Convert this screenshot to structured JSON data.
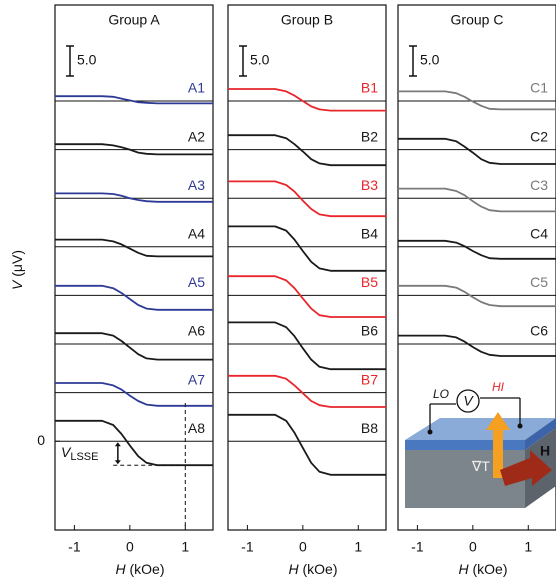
{
  "chart_data": [
    {
      "type": "line",
      "title": "Group A",
      "x": [
        -1.35,
        -1,
        -0.5,
        -0.3,
        -0.15,
        0,
        0.15,
        0.3,
        0.5,
        1,
        1.5
      ],
      "xlim": [
        -1.35,
        1.5
      ],
      "xticks": [
        -1,
        0,
        1
      ],
      "ylim": [
        -14.8,
        72.7
      ],
      "yticks": [
        0
      ],
      "xlabel_symbol": "H",
      "xlabel_unit": "(kOe)",
      "ylabel_symbol": "V",
      "ylabel_unit": "(μV)",
      "scale_bar": {
        "value": 5,
        "label": "5.0"
      },
      "annotation": {
        "symbol": "V",
        "subscript": "LSSE"
      },
      "series": [
        {
          "name": "A1",
          "color": "#2e3b96",
          "values": [
            57.5,
            57.5,
            57.5,
            57.4,
            57.1,
            56.8,
            56.5,
            56.4,
            56.3,
            56.3,
            56.3
          ]
        },
        {
          "name": "A2",
          "color": "#1a1a1a",
          "values": [
            49.5,
            49.5,
            49.5,
            49.3,
            49.0,
            48.6,
            48.1,
            47.9,
            47.8,
            47.8,
            47.8
          ]
        },
        {
          "name": "A3",
          "color": "#2e3b96",
          "values": [
            41.3,
            41.3,
            41.3,
            41.2,
            40.9,
            40.5,
            40.2,
            40.0,
            39.9,
            39.9,
            39.9
          ]
        },
        {
          "name": "A4",
          "color": "#1a1a1a",
          "values": [
            33.6,
            33.6,
            33.6,
            33.3,
            32.8,
            32.1,
            31.4,
            30.9,
            30.8,
            30.8,
            30.8
          ]
        },
        {
          "name": "A5",
          "color": "#2e3b96",
          "values": [
            25.9,
            25.9,
            25.9,
            25.5,
            24.7,
            23.7,
            22.7,
            22.1,
            21.9,
            21.9,
            21.9
          ]
        },
        {
          "name": "A6",
          "color": "#1a1a1a",
          "values": [
            18.0,
            18.0,
            18.0,
            17.6,
            16.7,
            15.6,
            14.5,
            13.8,
            13.6,
            13.6,
            13.6
          ]
        },
        {
          "name": "A7",
          "color": "#2e3b96",
          "values": [
            9.7,
            9.7,
            9.7,
            9.3,
            8.6,
            7.6,
            6.7,
            6.1,
            5.9,
            5.9,
            5.9
          ]
        },
        {
          "name": "A8",
          "color": "#1a1a1a",
          "values": [
            3.4,
            3.4,
            3.4,
            2.7,
            1.2,
            -0.7,
            -2.5,
            -3.6,
            -4.0,
            -4.0,
            -4.0
          ]
        }
      ]
    },
    {
      "type": "line",
      "title": "Group B",
      "x": [
        -1.35,
        -1,
        -0.5,
        -0.3,
        -0.15,
        0,
        0.15,
        0.3,
        0.5,
        1,
        1.5
      ],
      "xlim": [
        -1.35,
        1.5
      ],
      "xticks": [
        -1,
        0,
        1
      ],
      "ylim": [
        -14.8,
        72.7
      ],
      "xlabel_symbol": "H",
      "xlabel_unit": "(kOe)",
      "scale_bar": {
        "value": 5,
        "label": "5.0"
      },
      "series": [
        {
          "name": "B1",
          "color": "#e8262b",
          "values": [
            58.7,
            58.7,
            58.7,
            58.3,
            57.6,
            56.7,
            55.8,
            55.3,
            55.1,
            55.1,
            55.1
          ]
        },
        {
          "name": "B2",
          "color": "#1a1a1a",
          "values": [
            51.0,
            51.0,
            51.0,
            50.5,
            49.5,
            48.3,
            47.0,
            46.3,
            46.0,
            46.0,
            46.0
          ]
        },
        {
          "name": "B3",
          "color": "#e8262b",
          "values": [
            43.3,
            43.3,
            43.3,
            42.7,
            41.6,
            40.1,
            38.7,
            37.8,
            37.5,
            37.5,
            37.5
          ]
        },
        {
          "name": "B4",
          "color": "#1a1a1a",
          "values": [
            35.8,
            35.8,
            35.8,
            35.1,
            33.6,
            31.7,
            29.9,
            28.8,
            28.4,
            28.4,
            28.4
          ]
        },
        {
          "name": "B5",
          "color": "#e8262b",
          "values": [
            27.5,
            27.5,
            27.5,
            26.8,
            25.5,
            23.8,
            22.1,
            21.0,
            20.7,
            20.7,
            20.7
          ]
        },
        {
          "name": "B6",
          "color": "#1a1a1a",
          "values": [
            19.8,
            19.8,
            19.8,
            19.0,
            17.5,
            15.5,
            13.6,
            12.4,
            12.0,
            12.0,
            12.0
          ]
        },
        {
          "name": "B7",
          "color": "#e8262b",
          "values": [
            10.9,
            10.9,
            10.9,
            10.4,
            9.3,
            8.0,
            6.7,
            6.0,
            5.7,
            5.7,
            5.7
          ]
        },
        {
          "name": "B8",
          "color": "#1a1a1a",
          "values": [
            4.4,
            4.4,
            4.4,
            3.4,
            1.4,
            -1.1,
            -3.6,
            -5.1,
            -5.6,
            -5.6,
            -5.6
          ]
        }
      ]
    },
    {
      "type": "line",
      "title": "Group C",
      "x": [
        -1.35,
        -1,
        -0.5,
        -0.3,
        -0.15,
        0,
        0.15,
        0.3,
        0.5,
        1,
        1.5
      ],
      "xlim": [
        -1.35,
        1.5
      ],
      "xticks": [
        -1,
        0,
        1
      ],
      "ylim": [
        -14.8,
        72.7
      ],
      "xlabel_symbol": "H",
      "xlabel_unit": "(kOe)",
      "scale_bar": {
        "value": 5,
        "label": "5.0"
      },
      "inset": {
        "lo": "LO",
        "v": "V",
        "hi": "HI",
        "grad": "∇T",
        "field": "H"
      },
      "series": [
        {
          "name": "C1",
          "color": "#7a7a7a",
          "values": [
            58.3,
            58.3,
            58.3,
            58.0,
            57.4,
            56.6,
            55.9,
            55.4,
            55.3,
            55.3,
            55.3
          ]
        },
        {
          "name": "C2",
          "color": "#1a1a1a",
          "values": [
            50.4,
            50.4,
            50.4,
            50.0,
            49.1,
            48.1,
            47.0,
            46.4,
            46.2,
            46.2,
            46.2
          ]
        },
        {
          "name": "C3",
          "color": "#7a7a7a",
          "values": [
            42.1,
            42.1,
            42.1,
            41.7,
            41.0,
            40.0,
            39.1,
            38.5,
            38.3,
            38.3,
            38.3
          ]
        },
        {
          "name": "C4",
          "color": "#1a1a1a",
          "values": [
            33.4,
            33.4,
            33.4,
            33.1,
            32.5,
            31.7,
            31.0,
            30.5,
            30.4,
            30.4,
            30.4
          ]
        },
        {
          "name": "C5",
          "color": "#7a7a7a",
          "values": [
            25.9,
            25.9,
            25.9,
            25.6,
            24.9,
            24.0,
            23.2,
            22.7,
            22.5,
            22.5,
            22.5
          ]
        },
        {
          "name": "C6",
          "color": "#1a1a1a",
          "values": [
            17.6,
            17.6,
            17.6,
            17.3,
            16.6,
            15.7,
            14.9,
            14.4,
            14.2,
            14.2,
            14.2
          ]
        }
      ]
    }
  ]
}
